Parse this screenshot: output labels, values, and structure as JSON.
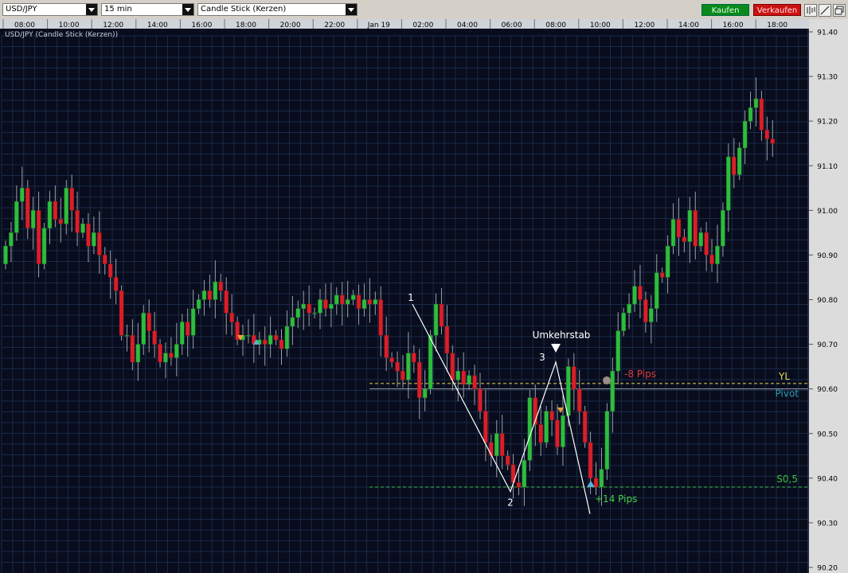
{
  "toolbar": {
    "symbol": "USD/JPY",
    "interval": "15 min",
    "chart_type": "Candle Stick (Kerzen)",
    "buy_label": "Kaufen",
    "sell_label": "Verkaufen",
    "icons": [
      "bar-tool-icon",
      "line-draw-icon",
      "window-icon"
    ]
  },
  "colors": {
    "background": "#080c1c",
    "grid": "#1a2a48",
    "bull": "#2ebd3e",
    "bear": "#d91f2a",
    "wick": "#9aa0aa",
    "yl": "#e6d84a",
    "pivot": "#2f9fb0",
    "s05": "#39c23b",
    "neg_pips": "#e03a3a",
    "pos_pips": "#44d044",
    "buy_button": "#0a8a1a",
    "sell_button": "#cc1111"
  },
  "chart_data": {
    "type": "candlestick",
    "title": "USD/JPY (Candle Stick (Kerzen))",
    "x_ticks": [
      "08:00",
      "10:00",
      "12:00",
      "14:00",
      "16:00",
      "18:00",
      "20:00",
      "22:00",
      "Jan 19",
      "02:00",
      "04:00",
      "06:00",
      "08:00",
      "10:00",
      "12:00",
      "14:00",
      "16:00",
      "18:00"
    ],
    "y_ticks": [
      "91.40",
      "91.30",
      "91.20",
      "91.10",
      "91.00",
      "90.90",
      "90.80",
      "90.70",
      "90.60",
      "90.50",
      "90.40",
      "90.30",
      "90.20"
    ],
    "ylim": [
      90.2,
      91.4
    ],
    "close": [
      90.92,
      90.95,
      91.02,
      91.05,
      90.96,
      91.0,
      90.88,
      90.96,
      91.02,
      90.98,
      90.97,
      91.05,
      91.0,
      90.95,
      90.97,
      90.92,
      90.95,
      90.9,
      90.88,
      90.85,
      90.82,
      90.72,
      90.72,
      90.66,
      90.7,
      90.77,
      90.73,
      90.7,
      90.66,
      90.68,
      90.67,
      90.7,
      90.75,
      90.72,
      90.78,
      90.8,
      90.82,
      90.8,
      90.84,
      90.82,
      90.77,
      90.75,
      90.71,
      90.72,
      90.72,
      90.7,
      90.71,
      90.7,
      90.72,
      90.71,
      90.69,
      90.74,
      90.76,
      90.78,
      90.79,
      90.77,
      90.77,
      90.8,
      90.78,
      90.79,
      90.81,
      90.79,
      90.8,
      90.81,
      90.78,
      90.8,
      90.79,
      90.8,
      90.72,
      90.67,
      90.66,
      90.64,
      90.62,
      90.68,
      90.66,
      90.58,
      90.6,
      90.72,
      90.79,
      90.74,
      90.68,
      90.62,
      90.64,
      90.61,
      90.63,
      90.6,
      90.55,
      90.48,
      90.45,
      90.5,
      90.45,
      90.43,
      90.39,
      90.38,
      90.44,
      90.58,
      90.52,
      90.48,
      90.55,
      90.53,
      90.47,
      90.54,
      90.65,
      90.6,
      90.55,
      90.48,
      90.4,
      90.38,
      90.42,
      90.55,
      90.64,
      90.73,
      90.77,
      90.79,
      90.83,
      90.8,
      90.75,
      90.78,
      90.86,
      90.85,
      90.92,
      90.98,
      90.94,
      90.93,
      91.0,
      90.92,
      90.95,
      90.9,
      90.88,
      90.92,
      91.0,
      91.12,
      91.08,
      91.14,
      91.2,
      91.23,
      91.25,
      91.18,
      91.16,
      91.15
    ],
    "annotations": {
      "pattern_labels": [
        "1",
        "2",
        "3"
      ],
      "pattern_label": "Umkehrstab",
      "neg_pips": "-8 Pips",
      "pos_pips": "+14 Pips",
      "level_labels": [
        "YL",
        "Pivot",
        "S0,5"
      ],
      "levels": {
        "YL": 90.612,
        "Pivot": 90.6,
        "S0,5": 90.38
      },
      "zigzag": [
        {
          "label": "1",
          "price": 90.79
        },
        {
          "label": "2",
          "price": 90.37
        },
        {
          "label": "3",
          "price": 90.66
        },
        {
          "label": "",
          "price": 90.32
        }
      ]
    }
  }
}
